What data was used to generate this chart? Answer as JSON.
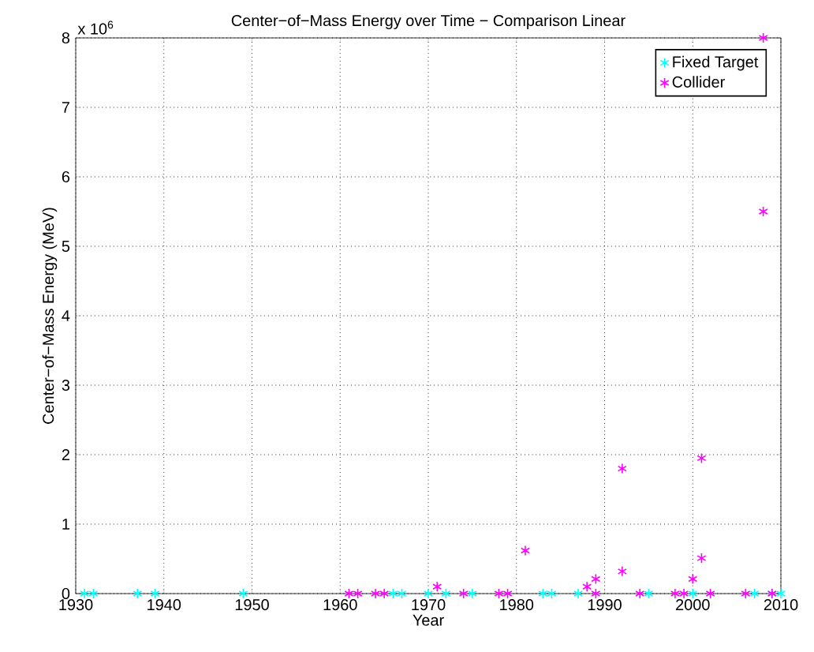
{
  "chart_data": {
    "type": "scatter",
    "title": "Center−of−Mass Energy over Time − Comparison Linear",
    "xlabel": "Year",
    "ylabel": "Center−of−Mass Energy (MeV)",
    "annotations": [
      "x 10$^{6}$"
    ],
    "series": [
      {
        "name": "Fixed Target",
        "color": "#00ffff",
        "x": [
          1931,
          1932,
          1937,
          1939,
          1949,
          1966,
          1967,
          1970,
          1972,
          1975,
          1983,
          1984,
          1987,
          1995,
          2000,
          2007,
          2009,
          2010
        ],
        "values": [
          0,
          0,
          0,
          0,
          0,
          0,
          0,
          0,
          0,
          0,
          0,
          0,
          0,
          0,
          0,
          0,
          0,
          0
        ]
      },
      {
        "name": "Collider",
        "color": "#ff00ff",
        "x": [
          1961,
          1962,
          1964,
          1965,
          1971,
          1974,
          1978,
          1979,
          1981,
          1988,
          1989,
          1989,
          1992,
          1992,
          1994,
          1998,
          1999,
          2000,
          2001,
          2001,
          2002,
          2006,
          2008,
          2008,
          2009
        ],
        "values": [
          0,
          0,
          0,
          0,
          0.1,
          0,
          0,
          0,
          0.62,
          0.1,
          0.21,
          0,
          1.8,
          0.32,
          0,
          0,
          0,
          0.21,
          0.51,
          1.95,
          0,
          0,
          8,
          5.5,
          0
        ]
      }
    ],
    "xlim": [
      1930,
      2010
    ],
    "xticks": [
      1930,
      1940,
      1950,
      1960,
      1970,
      1980,
      1990,
      2000,
      2010
    ],
    "ylim": [
      0,
      8
    ],
    "yticks": [
      0,
      1,
      2,
      3,
      4,
      5,
      6,
      7,
      8
    ],
    "grid": true,
    "legend": "top right",
    "marker": "cross"
  }
}
